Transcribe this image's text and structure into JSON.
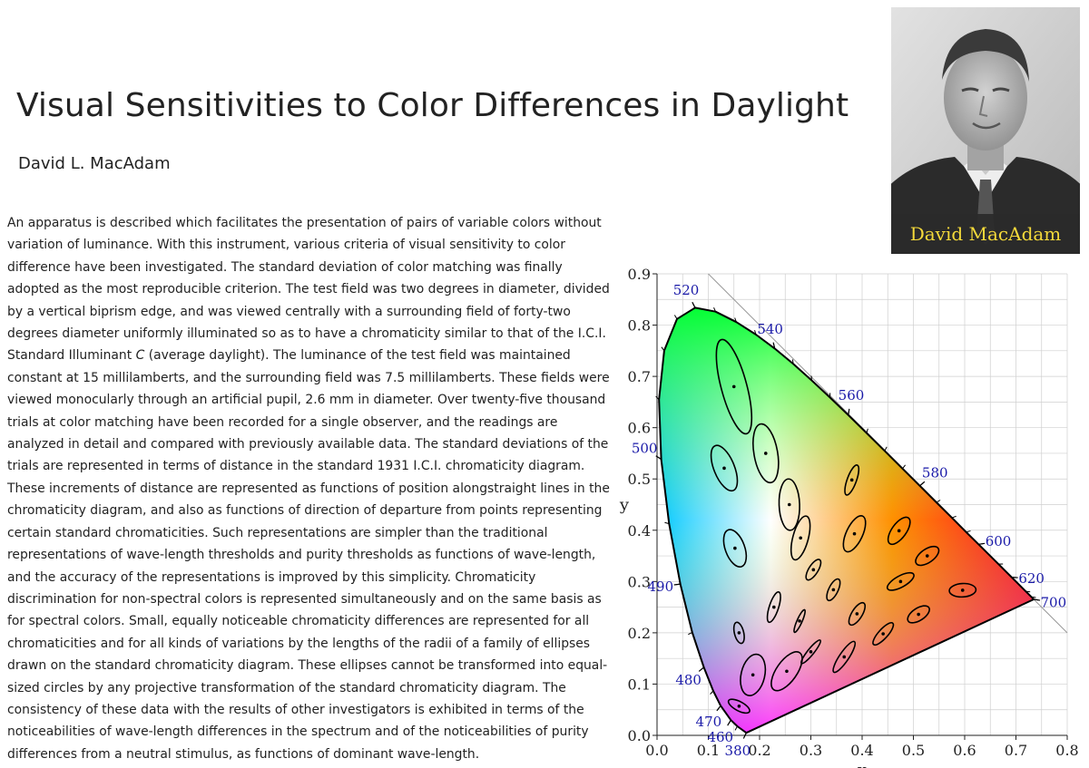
{
  "page": {
    "title": "Visual Sensitivities to Color Differences in Daylight",
    "author": "David L. MacAdam",
    "abstract_before": "An apparatus is described which facilitates the presentation of pairs of variable colors without variation of luminance. With this instrument, various criteria of visual sensitivity to color difference have been investigated. The standard deviation of color matching was finally adopted as the most reproducible criterion. The test field was two degrees in diameter, divided by a vertical biprism edge, and was viewed centrally with a surrounding field of forty-two degrees diameter uniformly illuminated so as to have a chromaticity similar to that of the I.C.I. Standard Illuminant ",
    "abstract_italic": "C",
    "abstract_after": " (average daylight). The luminance of the test field was maintained constant at 15 millilamberts, and the surrounding field was 7.5 millilamberts. These fields were viewed monocularly through an artificial pupil, 2.6 mm in diameter. Over twenty-five thousand trials at color matching have been recorded for a single observer, and the readings are analyzed in detail and compared with previously available data. The standard deviations of the trials are represented in terms of distance in the standard 1931 I.C.I. chromaticity diagram. These increments of distance are represented as functions of position alongstraight lines in the chromaticity diagram, and also as functions of direction of departure from points representing certain standard chromaticities. Such representations are simpler than the traditional representations of wave-length thresholds and purity thresholds as functions of wave-length, and the accuracy of the representations is improved by this simplicity. Chromaticity discrimination for non-spectral colors is represented simultaneously and on the same basis as for spectral colors. Small, equally noticeable chromaticity differences are represented for all chromaticities and for all kinds of variations by the lengths of the radii of a family of ellipses drawn on the standard chromaticity diagram. These ellipses cannot be transformed into equal-sized circles by any projective transformation of the standard chromaticity diagram. The consistency of these data with the results of other investigators is exhibited in terms of the noticeabilities of wave-length differences in the spectrum and of the noticeabilities of purity differences from a neutral stimulus, as functions of dominant wave-length."
  },
  "portrait": {
    "caption": "David MacAdam",
    "caption_color": "#f4d93a"
  },
  "chart_data": {
    "type": "scatter",
    "xlabel": "x",
    "ylabel": "y",
    "xlim": [
      0.0,
      0.8
    ],
    "ylim": [
      0.0,
      0.9
    ],
    "x_ticks": [
      "0.0",
      "0.1",
      "0.2",
      "0.3",
      "0.4",
      "0.5",
      "0.6",
      "0.7",
      "0.8"
    ],
    "y_ticks": [
      "0.0",
      "0.1",
      "0.2",
      "0.3",
      "0.4",
      "0.5",
      "0.6",
      "0.7",
      "0.8",
      "0.9"
    ],
    "grid": true,
    "spectral_locus": [
      {
        "nm": 380,
        "x": 0.1741,
        "y": 0.005
      },
      {
        "nm": 450,
        "x": 0.1566,
        "y": 0.0177
      },
      {
        "nm": 460,
        "x": 0.144,
        "y": 0.0297
      },
      {
        "nm": 470,
        "x": 0.1241,
        "y": 0.0578
      },
      {
        "nm": 475,
        "x": 0.1096,
        "y": 0.0868
      },
      {
        "nm": 480,
        "x": 0.0913,
        "y": 0.1327
      },
      {
        "nm": 485,
        "x": 0.0687,
        "y": 0.2007
      },
      {
        "nm": 490,
        "x": 0.0454,
        "y": 0.295
      },
      {
        "nm": 495,
        "x": 0.0235,
        "y": 0.4127
      },
      {
        "nm": 500,
        "x": 0.0082,
        "y": 0.5384
      },
      {
        "nm": 505,
        "x": 0.0039,
        "y": 0.6548
      },
      {
        "nm": 510,
        "x": 0.0139,
        "y": 0.7502
      },
      {
        "nm": 515,
        "x": 0.0389,
        "y": 0.812
      },
      {
        "nm": 520,
        "x": 0.0743,
        "y": 0.8338
      },
      {
        "nm": 525,
        "x": 0.1142,
        "y": 0.8262
      },
      {
        "nm": 530,
        "x": 0.1547,
        "y": 0.8059
      },
      {
        "nm": 535,
        "x": 0.1929,
        "y": 0.7816
      },
      {
        "nm": 540,
        "x": 0.2296,
        "y": 0.7543
      },
      {
        "nm": 545,
        "x": 0.2658,
        "y": 0.7243
      },
      {
        "nm": 550,
        "x": 0.3016,
        "y": 0.6923
      },
      {
        "nm": 555,
        "x": 0.3373,
        "y": 0.6589
      },
      {
        "nm": 560,
        "x": 0.3731,
        "y": 0.6245
      },
      {
        "nm": 565,
        "x": 0.4087,
        "y": 0.5896
      },
      {
        "nm": 570,
        "x": 0.4441,
        "y": 0.5547
      },
      {
        "nm": 575,
        "x": 0.4788,
        "y": 0.5202
      },
      {
        "nm": 580,
        "x": 0.5125,
        "y": 0.4866
      },
      {
        "nm": 585,
        "x": 0.5448,
        "y": 0.4544
      },
      {
        "nm": 590,
        "x": 0.5752,
        "y": 0.4242
      },
      {
        "nm": 595,
        "x": 0.6029,
        "y": 0.3965
      },
      {
        "nm": 600,
        "x": 0.627,
        "y": 0.3725
      },
      {
        "nm": 610,
        "x": 0.6658,
        "y": 0.334
      },
      {
        "nm": 620,
        "x": 0.6915,
        "y": 0.3083
      },
      {
        "nm": 640,
        "x": 0.719,
        "y": 0.2809
      },
      {
        "nm": 660,
        "x": 0.73,
        "y": 0.27
      },
      {
        "nm": 700,
        "x": 0.7347,
        "y": 0.2653
      }
    ],
    "wavelength_labels": [
      {
        "label": "380",
        "nm": 380
      },
      {
        "label": "460",
        "nm": 460
      },
      {
        "label": "470",
        "nm": 470
      },
      {
        "label": "480",
        "nm": 480
      },
      {
        "label": "490",
        "nm": 490
      },
      {
        "label": "500",
        "nm": 500
      },
      {
        "label": "520",
        "nm": 520
      },
      {
        "label": "540",
        "nm": 540
      },
      {
        "label": "560",
        "nm": 560
      },
      {
        "label": "580",
        "nm": 580
      },
      {
        "label": "600",
        "nm": 600
      },
      {
        "label": "620",
        "nm": 620
      },
      {
        "label": "700",
        "nm": 700
      }
    ],
    "ellipses": [
      {
        "x": 0.16,
        "y": 0.057,
        "a": 0.0009,
        "b": 0.0023,
        "angle": 62
      },
      {
        "x": 0.187,
        "y": 0.118,
        "a": 0.0041,
        "b": 0.0023,
        "angle": 77
      },
      {
        "x": 0.253,
        "y": 0.125,
        "a": 0.0044,
        "b": 0.002,
        "angle": 55
      },
      {
        "x": 0.15,
        "y": 0.68,
        "a": 0.0095,
        "b": 0.0025,
        "angle": 105
      },
      {
        "x": 0.131,
        "y": 0.521,
        "a": 0.0047,
        "b": 0.002,
        "angle": 112
      },
      {
        "x": 0.212,
        "y": 0.55,
        "a": 0.0058,
        "b": 0.0023,
        "angle": 100
      },
      {
        "x": 0.258,
        "y": 0.45,
        "a": 0.005,
        "b": 0.002,
        "angle": 92
      },
      {
        "x": 0.152,
        "y": 0.365,
        "a": 0.0038,
        "b": 0.0019,
        "angle": 110
      },
      {
        "x": 0.28,
        "y": 0.385,
        "a": 0.0044,
        "b": 0.0015,
        "angle": 75
      },
      {
        "x": 0.38,
        "y": 0.498,
        "a": 0.0031,
        "b": 0.0009,
        "angle": 70
      },
      {
        "x": 0.16,
        "y": 0.2,
        "a": 0.0021,
        "b": 0.0009,
        "angle": 104
      },
      {
        "x": 0.228,
        "y": 0.25,
        "a": 0.0031,
        "b": 0.0009,
        "angle": 72
      },
      {
        "x": 0.305,
        "y": 0.323,
        "a": 0.0023,
        "b": 0.0009,
        "angle": 58
      },
      {
        "x": 0.385,
        "y": 0.393,
        "a": 0.0038,
        "b": 0.0016,
        "angle": 65
      },
      {
        "x": 0.472,
        "y": 0.399,
        "a": 0.0031,
        "b": 0.0014,
        "angle": 54
      },
      {
        "x": 0.527,
        "y": 0.35,
        "a": 0.0026,
        "b": 0.0013,
        "angle": 35
      },
      {
        "x": 0.475,
        "y": 0.3,
        "a": 0.0029,
        "b": 0.0011,
        "angle": 29
      },
      {
        "x": 0.51,
        "y": 0.236,
        "a": 0.0024,
        "b": 0.0012,
        "angle": 33
      },
      {
        "x": 0.596,
        "y": 0.283,
        "a": 0.0026,
        "b": 0.0013,
        "angle": 3
      },
      {
        "x": 0.344,
        "y": 0.284,
        "a": 0.0023,
        "b": 0.0009,
        "angle": 64
      },
      {
        "x": 0.39,
        "y": 0.237,
        "a": 0.0025,
        "b": 0.001,
        "angle": 58
      },
      {
        "x": 0.441,
        "y": 0.198,
        "a": 0.0028,
        "b": 0.0009,
        "angle": 48
      },
      {
        "x": 0.278,
        "y": 0.223,
        "a": 0.0024,
        "b": 0.0005,
        "angle": 66
      },
      {
        "x": 0.3,
        "y": 0.163,
        "a": 0.0029,
        "b": 0.0006,
        "angle": 51
      },
      {
        "x": 0.365,
        "y": 0.153,
        "a": 0.0036,
        "b": 0.0009,
        "angle": 56
      }
    ]
  }
}
